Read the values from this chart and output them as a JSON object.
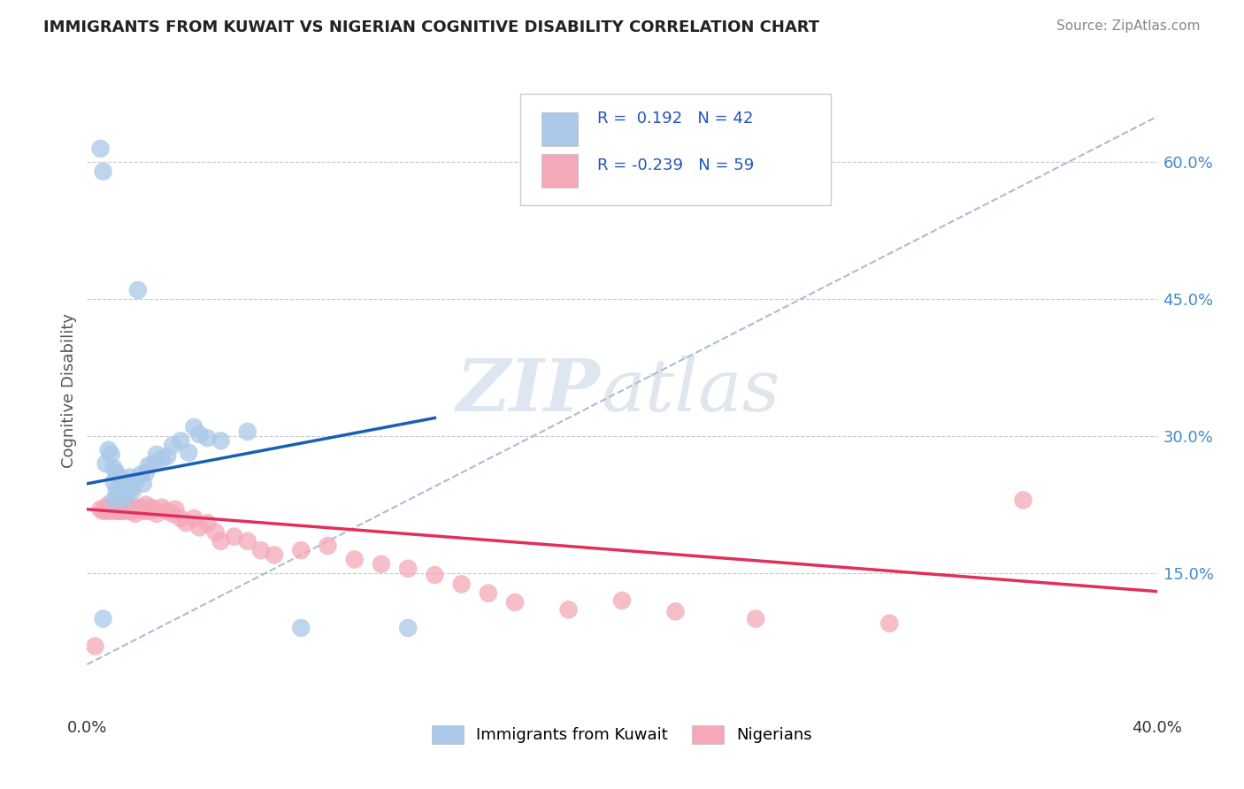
{
  "title": "IMMIGRANTS FROM KUWAIT VS NIGERIAN COGNITIVE DISABILITY CORRELATION CHART",
  "source": "Source: ZipAtlas.com",
  "ylabel": "Cognitive Disability",
  "xlim": [
    0.0,
    0.4
  ],
  "ylim": [
    0.0,
    0.7
  ],
  "yticks_right": [
    0.15,
    0.3,
    0.45,
    0.6
  ],
  "ytick_labels_right": [
    "15.0%",
    "30.0%",
    "45.0%",
    "60.0%"
  ],
  "color_kuwait": "#aac8e8",
  "color_nigerian": "#f4a8b8",
  "line_color_kuwait": "#1a5fb4",
  "line_color_nigerian": "#e0305a",
  "watermark_zip": "ZIP",
  "watermark_atlas": "atlas",
  "grid_color": "#c8c8c8",
  "background_color": "#ffffff",
  "kuwait_x": [
    0.005,
    0.006,
    0.006,
    0.007,
    0.008,
    0.009,
    0.01,
    0.01,
    0.01,
    0.011,
    0.011,
    0.012,
    0.012,
    0.013,
    0.013,
    0.014,
    0.014,
    0.015,
    0.015,
    0.016,
    0.016,
    0.017,
    0.018,
    0.019,
    0.02,
    0.021,
    0.022,
    0.023,
    0.025,
    0.026,
    0.028,
    0.03,
    0.032,
    0.035,
    0.038,
    0.04,
    0.042,
    0.045,
    0.05,
    0.06,
    0.08,
    0.12
  ],
  "kuwait_y": [
    0.615,
    0.59,
    0.1,
    0.27,
    0.285,
    0.28,
    0.25,
    0.265,
    0.23,
    0.26,
    0.24,
    0.255,
    0.24,
    0.25,
    0.235,
    0.248,
    0.232,
    0.25,
    0.238,
    0.255,
    0.242,
    0.24,
    0.25,
    0.46,
    0.258,
    0.248,
    0.26,
    0.268,
    0.27,
    0.28,
    0.275,
    0.278,
    0.29,
    0.295,
    0.282,
    0.31,
    0.302,
    0.298,
    0.295,
    0.305,
    0.09,
    0.09
  ],
  "nigerian_x": [
    0.003,
    0.005,
    0.006,
    0.007,
    0.008,
    0.008,
    0.009,
    0.01,
    0.01,
    0.011,
    0.012,
    0.012,
    0.013,
    0.013,
    0.014,
    0.015,
    0.015,
    0.016,
    0.017,
    0.018,
    0.018,
    0.019,
    0.02,
    0.021,
    0.022,
    0.023,
    0.024,
    0.025,
    0.026,
    0.028,
    0.03,
    0.032,
    0.033,
    0.035,
    0.037,
    0.04,
    0.042,
    0.045,
    0.048,
    0.05,
    0.055,
    0.06,
    0.065,
    0.07,
    0.08,
    0.09,
    0.1,
    0.11,
    0.12,
    0.13,
    0.14,
    0.15,
    0.16,
    0.18,
    0.2,
    0.22,
    0.25,
    0.3,
    0.35
  ],
  "nigerian_y": [
    0.07,
    0.22,
    0.218,
    0.222,
    0.218,
    0.225,
    0.22,
    0.218,
    0.222,
    0.22,
    0.218,
    0.225,
    0.22,
    0.218,
    0.222,
    0.218,
    0.225,
    0.22,
    0.218,
    0.222,
    0.215,
    0.22,
    0.222,
    0.218,
    0.225,
    0.218,
    0.222,
    0.22,
    0.215,
    0.222,
    0.218,
    0.215,
    0.22,
    0.21,
    0.205,
    0.21,
    0.2,
    0.205,
    0.195,
    0.185,
    0.19,
    0.185,
    0.175,
    0.17,
    0.175,
    0.18,
    0.165,
    0.16,
    0.155,
    0.148,
    0.138,
    0.128,
    0.118,
    0.11,
    0.12,
    0.108,
    0.1,
    0.095,
    0.23
  ],
  "blue_line_x": [
    0.0,
    0.13
  ],
  "blue_line_y": [
    0.248,
    0.32
  ],
  "pink_line_x": [
    0.0,
    0.4
  ],
  "pink_line_y": [
    0.22,
    0.13
  ],
  "ref_line_x": [
    0.0,
    0.4
  ],
  "ref_line_y": [
    0.05,
    0.65
  ]
}
